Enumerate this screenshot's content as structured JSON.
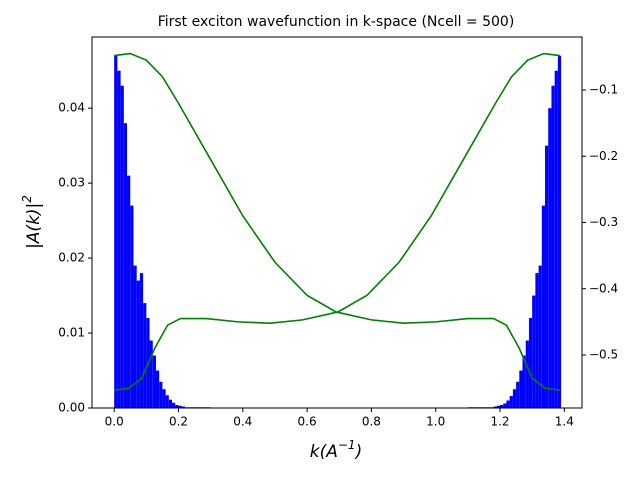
{
  "chart_data": {
    "type": "bar",
    "title": "First exciton wavefunction in k-space (Ncell = 500)",
    "xlabel_parts": [
      "k(A",
      "−1",
      ")"
    ],
    "ylabel_parts": [
      "|A(k)|",
      "2"
    ],
    "xlim": [
      -0.069,
      1.455
    ],
    "xticks": [
      {
        "value": 0,
        "label": "0.0"
      },
      0.2,
      0.4,
      0.6,
      0.8,
      {
        "value": 1,
        "label": "1.0"
      },
      1.2,
      1.4
    ],
    "ylim": [
      0,
      0.0495
    ],
    "yticks": [
      {
        "value": 0,
        "label": "0.00"
      },
      {
        "value": 0.01,
        "label": "0.01"
      },
      {
        "value": 0.02,
        "label": "0.02"
      },
      {
        "value": 0.03,
        "label": "0.03"
      },
      {
        "value": 0.04,
        "label": "0.04"
      }
    ],
    "y2lim": [
      -0.58,
      -0.02
    ],
    "y2ticks": [
      {
        "value": -0.1,
        "label": "−0.1"
      },
      {
        "value": -0.2,
        "label": "−0.2"
      },
      {
        "value": -0.3,
        "label": "−0.3"
      },
      {
        "value": -0.4,
        "label": "−0.4"
      },
      {
        "value": -0.5,
        "label": "−0.5"
      }
    ],
    "series": [
      {
        "type": "bar",
        "color": "#0000ff",
        "x": [
          0,
          0.01,
          0.02,
          0.03,
          0.04,
          0.05,
          0.06,
          0.07,
          0.08,
          0.09,
          0.1,
          0.11,
          0.12,
          0.13,
          0.14,
          0.15,
          0.16,
          0.17,
          0.18,
          0.19,
          0.2,
          0.21,
          0.22,
          0.23,
          0.24,
          0.25,
          0.26,
          0.27,
          0.28,
          0.29,
          1.1,
          1.11,
          1.12,
          1.13,
          1.14,
          1.15,
          1.16,
          1.17,
          1.18,
          1.19,
          1.2,
          1.21,
          1.22,
          1.23,
          1.24,
          1.25,
          1.26,
          1.27,
          1.28,
          1.29,
          1.3,
          1.31,
          1.32,
          1.33,
          1.34,
          1.35,
          1.36,
          1.37,
          1.38
        ],
        "values": [
          0.047,
          0.045,
          0.043,
          0.038,
          0.031,
          0.027,
          0.019,
          0.017,
          0.018,
          0.014,
          0.012,
          0.009,
          0.007,
          0.005,
          0.0035,
          0.0025,
          0.0017,
          0.0011,
          0.0007,
          0.0004,
          0.0003,
          0.0002,
          0.0001,
          0.0001,
          0.0001,
          0.0001,
          0.0001,
          0.0001,
          0.0001,
          0.0001,
          0.0001,
          0.0001,
          0.0001,
          0.0001,
          0.0001,
          0.0001,
          0.0001,
          0.0001,
          0.0002,
          0.0003,
          0.0004,
          0.0006,
          0.001,
          0.0016,
          0.0025,
          0.0035,
          0.005,
          0.007,
          0.009,
          0.012,
          0.015,
          0.018,
          0.019,
          0.027,
          0.035,
          0.04,
          0.043,
          0.045,
          0.047
        ]
      },
      {
        "type": "line",
        "axis": "y2",
        "color": "#008000",
        "x": [
          0,
          0.05,
          0.1,
          0.15,
          0.2,
          0.3,
          0.4,
          0.5,
          0.6,
          0.69,
          0.8,
          0.9,
          1.0,
          1.1,
          1.18,
          1.22,
          1.26,
          1.3,
          1.34,
          1.386
        ],
        "values": [
          -0.048,
          -0.045,
          -0.055,
          -0.08,
          -0.12,
          -0.205,
          -0.29,
          -0.36,
          -0.41,
          -0.435,
          -0.447,
          -0.452,
          -0.45,
          -0.445,
          -0.445,
          -0.455,
          -0.49,
          -0.535,
          -0.55,
          -0.553
        ]
      },
      {
        "type": "line",
        "axis": "y2",
        "color": "#008000",
        "x": [
          0,
          0.046,
          0.086,
          0.126,
          0.166,
          0.206,
          0.286,
          0.386,
          0.486,
          0.586,
          0.696,
          0.786,
          0.886,
          0.986,
          1.086,
          1.186,
          1.236,
          1.286,
          1.336,
          1.386
        ],
        "values": [
          -0.553,
          -0.55,
          -0.535,
          -0.49,
          -0.455,
          -0.445,
          -0.445,
          -0.45,
          -0.452,
          -0.447,
          -0.435,
          -0.41,
          -0.36,
          -0.29,
          -0.205,
          -0.12,
          -0.08,
          -0.055,
          -0.045,
          -0.048
        ]
      }
    ]
  }
}
